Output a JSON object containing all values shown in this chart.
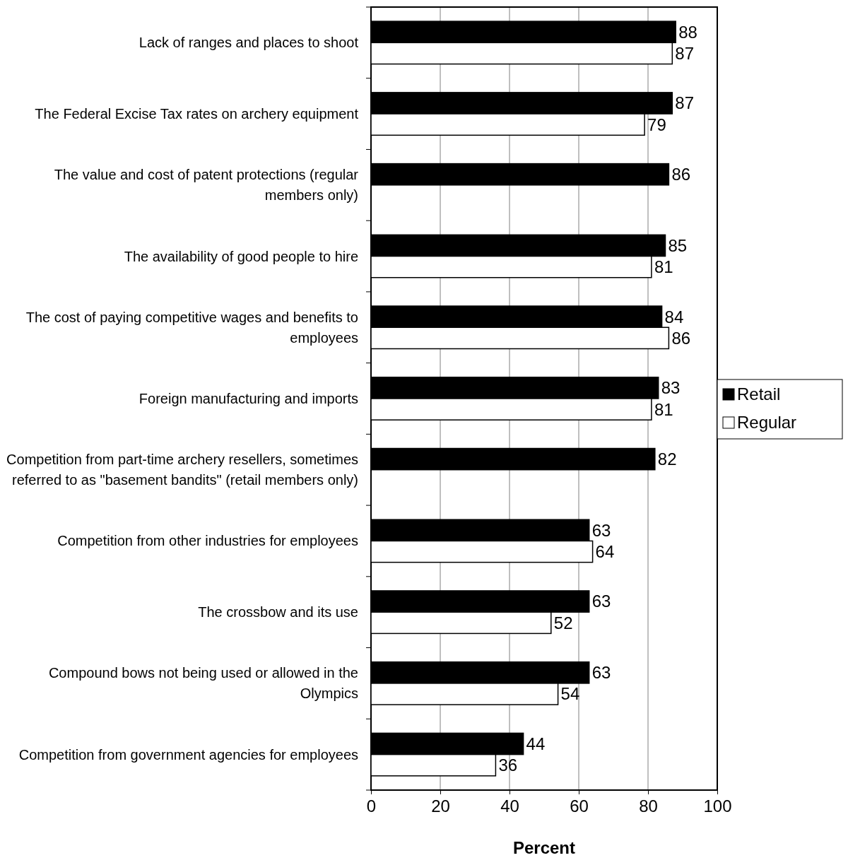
{
  "chart_data": {
    "type": "bar",
    "orientation": "horizontal",
    "xlabel": "Percent",
    "categories": [
      "Lack of ranges and places to shoot",
      "The Federal Excise Tax rates on archery equipment",
      "The value and cost of patent protections (regular members only)",
      "The availability of good people to hire",
      "The cost of paying competitive wages and benefits to employees",
      "Foreign manufacturing and imports",
      "Competition from part-time archery resellers, sometimes referred to as \"basement bandits\" (retail members only)",
      "Competition from other industries for employees",
      "The crossbow and its use",
      "Compound bows not being used or allowed in the Olympics",
      "Competition from government agencies for employees"
    ],
    "series": [
      {
        "name": "Retail",
        "color": "#000000",
        "values": [
          88,
          87,
          86,
          85,
          84,
          83,
          82,
          63,
          63,
          63,
          44
        ]
      },
      {
        "name": "Regular",
        "color": "#ffffff",
        "values": [
          87,
          79,
          null,
          81,
          86,
          81,
          null,
          64,
          52,
          54,
          36
        ]
      }
    ],
    "xlim": [
      0,
      100
    ],
    "xticks": [
      0,
      20,
      40,
      60,
      80,
      100
    ],
    "grid": "x",
    "legend": "right",
    "data_labels": true
  }
}
